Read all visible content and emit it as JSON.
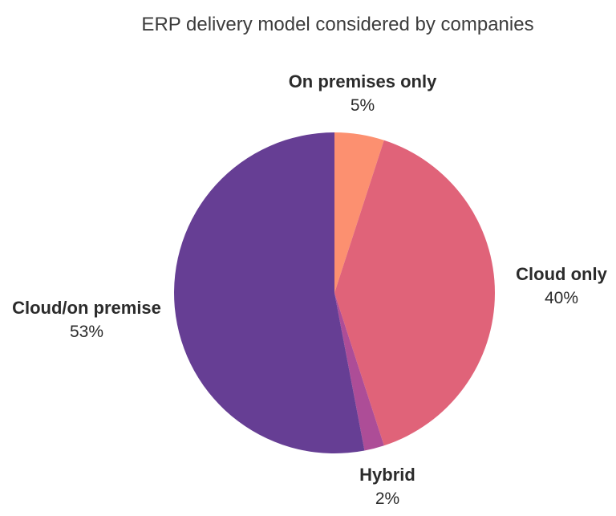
{
  "chart_data": {
    "type": "pie",
    "title": "ERP delivery model considered by companies",
    "start_angle_deg": 0,
    "direction": "clockwise",
    "legend": "none",
    "labels_position": "outside",
    "background_color": "#ffffff",
    "title_color": "#3c3c3c",
    "label_color": "#2b2b2b",
    "slices": [
      {
        "label": "On premises only",
        "value": 5,
        "percent_label": "5%",
        "color": "#FC9070"
      },
      {
        "label": "Cloud only",
        "value": 40,
        "percent_label": "40%",
        "color": "#E06379"
      },
      {
        "label": "Hybrid",
        "value": 2,
        "percent_label": "2%",
        "color": "#AD4D97"
      },
      {
        "label": "Cloud/on premise",
        "value": 53,
        "percent_label": "53%",
        "color": "#663E94"
      }
    ]
  }
}
